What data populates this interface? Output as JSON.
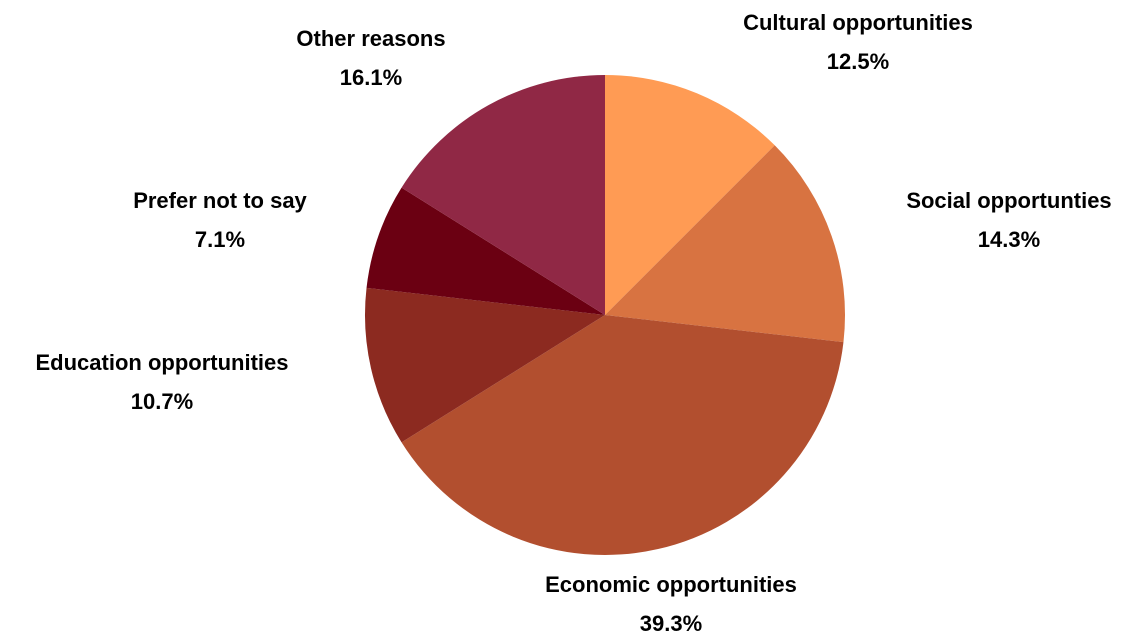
{
  "chart_data": {
    "type": "pie",
    "title": "",
    "legend": "none",
    "slices": [
      {
        "label": "Cultural opportunities",
        "value": 12.5,
        "value_label": "12.5%",
        "color": "#FF9B54"
      },
      {
        "label": "Social opportunties",
        "value": 14.3,
        "value_label": "14.3%",
        "color": "#D87341"
      },
      {
        "label": "Economic opportunities",
        "value": 39.3,
        "value_label": "39.3%",
        "color": "#B24F2F"
      },
      {
        "label": "Education opportunities",
        "value": 10.7,
        "value_label": "10.7%",
        "color": "#8C2A20"
      },
      {
        "label": "Prefer not to say",
        "value": 7.1,
        "value_label": "7.1%",
        "color": "#6B0012"
      },
      {
        "label": "Other reasons",
        "value": 16.1,
        "value_label": "16.1%",
        "color": "#902845"
      }
    ],
    "start_angle": "12 o'clock",
    "direction": "clockwise"
  }
}
